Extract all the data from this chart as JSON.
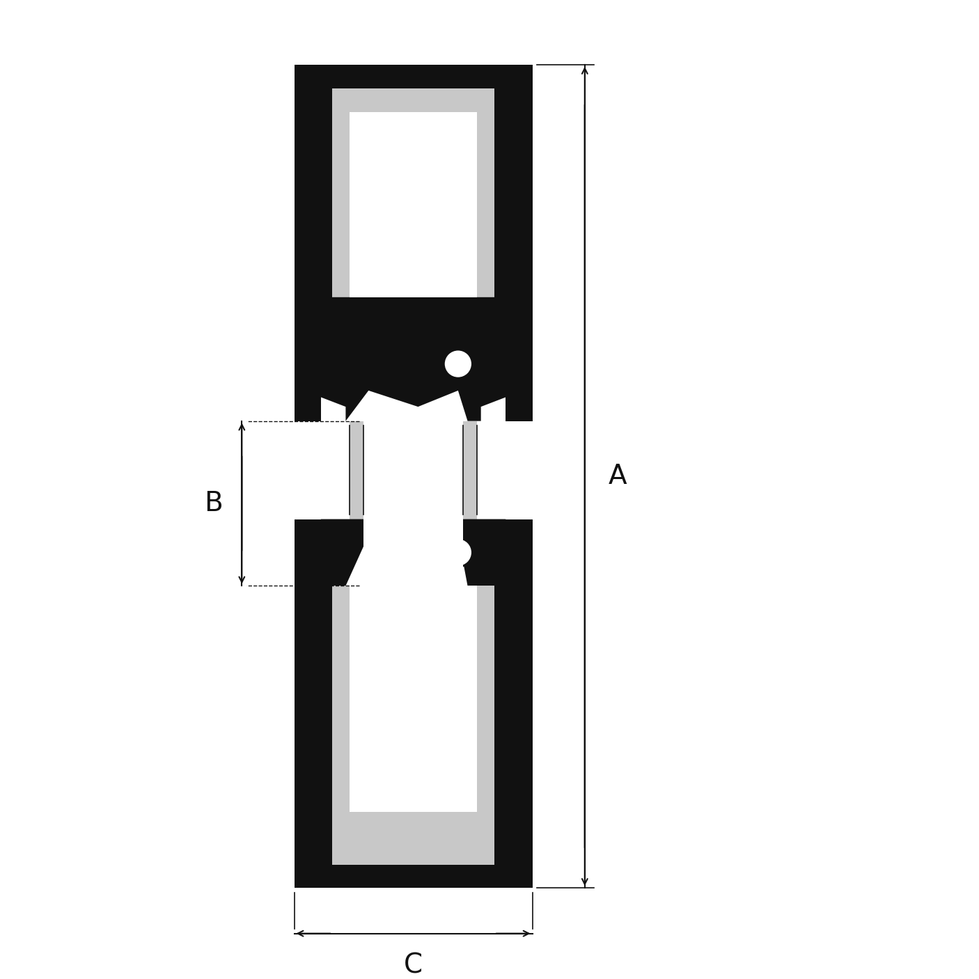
{
  "bg": "#ffffff",
  "blk": "#111111",
  "lgr": "#c8c8c8",
  "wht": "#ffffff",
  "figsize": [
    14.06,
    14.06
  ],
  "dpi": 100,
  "label_A": "A",
  "label_B": "B",
  "label_C": "C",
  "label_fontsize": 28
}
